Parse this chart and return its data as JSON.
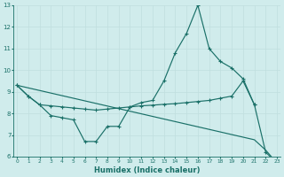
{
  "xlabel": "Humidex (Indice chaleur)",
  "x_values": [
    0,
    1,
    2,
    3,
    4,
    5,
    6,
    7,
    8,
    9,
    10,
    11,
    12,
    13,
    14,
    15,
    16,
    17,
    18,
    19,
    20,
    21,
    22,
    23
  ],
  "line1": [
    9.3,
    8.8,
    8.4,
    7.9,
    7.8,
    7.7,
    6.7,
    6.7,
    7.4,
    7.4,
    8.3,
    8.5,
    8.6,
    9.5,
    10.8,
    11.7,
    13.0,
    11.0,
    10.4,
    10.1,
    9.6,
    8.4,
    6.2,
    5.7
  ],
  "line2": [
    9.3,
    8.8,
    8.4,
    8.35,
    8.3,
    8.25,
    8.2,
    8.15,
    8.2,
    8.25,
    8.3,
    8.35,
    8.38,
    8.42,
    8.45,
    8.5,
    8.55,
    8.6,
    8.7,
    8.8,
    9.5,
    8.4,
    null,
    null
  ],
  "line3": [
    9.3,
    9.18,
    9.06,
    8.94,
    8.82,
    8.7,
    8.58,
    8.46,
    8.34,
    8.22,
    8.1,
    7.98,
    7.86,
    7.74,
    7.62,
    7.5,
    7.38,
    7.26,
    7.14,
    7.02,
    6.9,
    6.78,
    6.3,
    5.7
  ],
  "ylim_min": 6,
  "ylim_max": 13,
  "yticks": [
    6,
    7,
    8,
    9,
    10,
    11,
    12,
    13
  ],
  "xticks": [
    0,
    1,
    2,
    3,
    4,
    5,
    6,
    7,
    8,
    9,
    10,
    11,
    12,
    13,
    14,
    15,
    16,
    17,
    18,
    19,
    20,
    21,
    22,
    23
  ],
  "line_color": "#1a7068",
  "bg_color": "#d0ecec",
  "grid_color": "#c0dede"
}
